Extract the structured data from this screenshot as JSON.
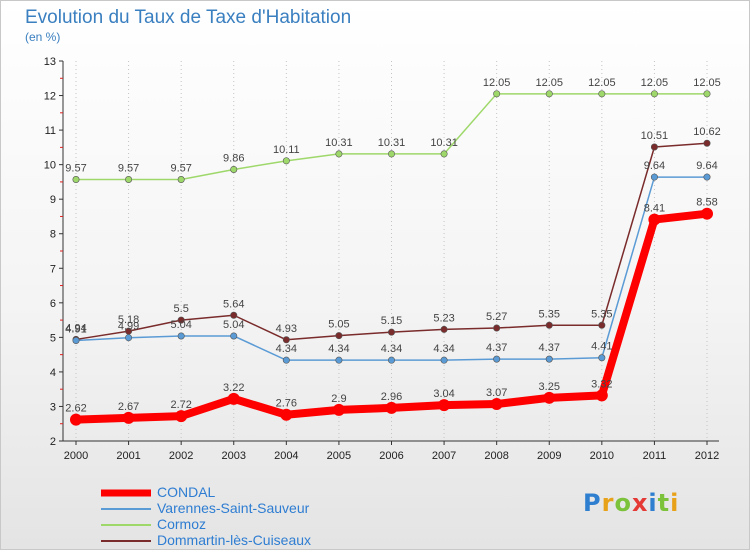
{
  "title": "Evolution du Taux de Taxe d'Habitation",
  "unit_label": "(en %)",
  "logo": {
    "text": "Proxiti",
    "letter_colors": [
      "#2f7fd0",
      "#e8a21a",
      "#7cc23b",
      "#e53935",
      "#2f7fd0",
      "#7cc23b",
      "#e8a21a"
    ]
  },
  "chart_data": {
    "type": "line",
    "x": [
      "2000",
      "2001",
      "2002",
      "2003",
      "2004",
      "2005",
      "2006",
      "2007",
      "2008",
      "2009",
      "2010",
      "2011",
      "2012"
    ],
    "ylim": [
      2,
      13
    ],
    "yticks": [
      2,
      3,
      4,
      5,
      6,
      7,
      8,
      9,
      10,
      11,
      12,
      13
    ],
    "grid": "vertical dotted",
    "legend_position": "bottom-left",
    "series": [
      {
        "name": "CONDAL",
        "color": "#ff0000",
        "values": [
          2.62,
          2.67,
          2.72,
          3.22,
          2.76,
          2.9,
          2.96,
          3.04,
          3.07,
          3.25,
          3.32,
          8.41,
          8.58
        ],
        "labels": [
          "2.62",
          "2.67",
          "2.72",
          "3.22",
          "2.76",
          "2.9",
          "2.96",
          "3.04",
          "3.07",
          "3.25",
          "3.32",
          "8.41",
          "8.58"
        ]
      },
      {
        "name": "Varennes-Saint-Sauveur",
        "color": "#5b9bd5",
        "values": [
          4.91,
          4.99,
          5.04,
          5.04,
          4.34,
          4.34,
          4.34,
          4.34,
          4.37,
          4.37,
          4.41,
          9.64,
          9.64
        ],
        "labels": [
          "4.91",
          "4.99",
          "5.04",
          "5.04",
          "4.34",
          "4.34",
          "4.34",
          "4.34",
          "4.37",
          "4.37",
          "4.41",
          "9.64",
          "9.64"
        ]
      },
      {
        "name": "Cormoz",
        "color": "#9ed86a",
        "values": [
          9.57,
          9.57,
          9.57,
          9.86,
          10.11,
          10.31,
          10.31,
          10.31,
          12.05,
          12.05,
          12.05,
          12.05,
          12.05
        ],
        "labels": [
          "9.57",
          "9.57",
          "9.57",
          "9.86",
          "10.11",
          "10.31",
          "10.31",
          "10.31",
          "12.05",
          "12.05",
          "12.05",
          "12.05",
          "12.05"
        ]
      },
      {
        "name": "Dommartin-lès-Cuiseaux",
        "color": "#7a2b2b",
        "values": [
          4.94,
          5.18,
          5.5,
          5.64,
          4.93,
          5.05,
          5.15,
          5.23,
          5.27,
          5.35,
          5.35,
          10.51,
          10.62
        ],
        "labels": [
          "4.94",
          "5.18",
          "5.5",
          "5.64",
          "4.93",
          "5.05",
          "5.15",
          "5.23",
          "5.27",
          "5.35",
          "5.35",
          "10.51",
          "10.62"
        ]
      }
    ]
  }
}
